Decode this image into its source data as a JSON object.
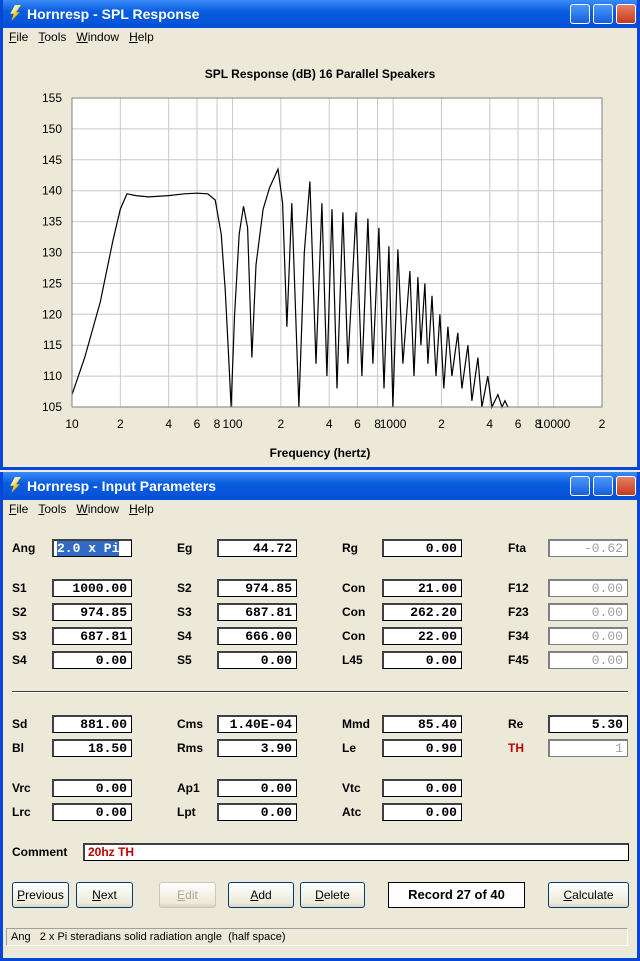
{
  "spl_window": {
    "title": "Hornresp - SPL Response",
    "menu": [
      "File",
      "Tools",
      "Window",
      "Help"
    ]
  },
  "chart_data": {
    "type": "line",
    "title": "SPL Response (dB)   16 Parallel Speakers",
    "xlabel": "Frequency (hertz)",
    "x": [
      10,
      12,
      15,
      18,
      20,
      22,
      25,
      30,
      40,
      50,
      60,
      70,
      78,
      85,
      90,
      95,
      98,
      103,
      110,
      117,
      124,
      132,
      140,
      155,
      170,
      192,
      205,
      218,
      234,
      259,
      280,
      303,
      331,
      360,
      387,
      416,
      447,
      487,
      523,
      587,
      639,
      697,
      748,
      816,
      877,
      942,
      997,
      1071,
      1151,
      1273,
      1349,
      1426,
      1490,
      1578,
      1648,
      1746,
      1849,
      1955,
      2070,
      2193,
      2322,
      2530,
      2680,
      2922,
      3097,
      3375,
      3574,
      3890,
      4121,
      4497,
      4764,
      4966,
      5188
    ],
    "values": [
      107,
      113,
      122,
      132,
      137,
      139.5,
      139.2,
      139,
      139.2,
      139.5,
      139.6,
      139.5,
      138.5,
      133,
      124,
      112,
      105,
      120,
      133,
      137.5,
      134,
      113,
      128,
      137,
      140.5,
      143.5,
      138,
      118,
      138,
      105,
      130,
      141.5,
      112,
      138,
      110,
      137,
      108,
      136.5,
      112,
      136.5,
      110,
      135.5,
      112,
      134,
      108,
      131,
      105,
      130.5,
      112,
      127,
      110,
      126,
      115,
      125,
      112,
      123,
      110,
      120,
      108,
      118,
      110,
      117,
      108,
      115,
      106,
      113,
      105,
      110,
      105,
      107,
      105,
      106,
      105
    ],
    "color": "#000000",
    "x_log": true,
    "grid": true,
    "xlim": [
      10,
      20000
    ],
    "xticks": [
      10,
      {
        "value": 20,
        "label": "2"
      },
      {
        "value": 40,
        "label": "4"
      },
      {
        "value": 60,
        "label": "6"
      },
      {
        "value": 80,
        "label": "8"
      },
      100,
      {
        "value": 200,
        "label": "2"
      },
      {
        "value": 400,
        "label": "4"
      },
      {
        "value": 600,
        "label": "6"
      },
      {
        "value": 800,
        "label": "8"
      },
      1000,
      {
        "value": 2000,
        "label": "2"
      },
      {
        "value": 4000,
        "label": "4"
      },
      {
        "value": 6000,
        "label": "6"
      },
      {
        "value": 8000,
        "label": "8"
      },
      10000,
      {
        "value": 20000,
        "label": "2"
      }
    ],
    "ylim": [
      105,
      155
    ],
    "yticks": [
      105,
      110,
      115,
      120,
      125,
      130,
      135,
      140,
      145,
      150,
      155
    ]
  },
  "input_window": {
    "title": "Hornresp - Input Parameters",
    "menu": [
      "File",
      "Tools",
      "Window",
      "Help"
    ],
    "rows": [
      [
        [
          "Ang",
          "2.0 x Pi"
        ],
        [
          "Eg",
          "44.72"
        ],
        [
          "Rg",
          "0.00"
        ],
        [
          "Fta",
          "-0.62"
        ]
      ],
      [
        [
          "S1",
          "1000.00"
        ],
        [
          "S2",
          "974.85"
        ],
        [
          "Con",
          "21.00"
        ],
        [
          "F12",
          "0.00"
        ]
      ],
      [
        [
          "S2",
          "974.85"
        ],
        [
          "S3",
          "687.81"
        ],
        [
          "Con",
          "262.20"
        ],
        [
          "F23",
          "0.00"
        ]
      ],
      [
        [
          "S3",
          "687.81"
        ],
        [
          "S4",
          "666.00"
        ],
        [
          "Con",
          "22.00"
        ],
        [
          "F34",
          "0.00"
        ]
      ],
      [
        [
          "S4",
          "0.00"
        ],
        [
          "S5",
          "0.00"
        ],
        [
          "L45",
          "0.00"
        ],
        [
          "F45",
          "0.00"
        ]
      ],
      [
        [
          "Sd",
          "881.00"
        ],
        [
          "Cms",
          "1.40E-04"
        ],
        [
          "Mmd",
          "85.40"
        ],
        [
          "Re",
          "5.30"
        ]
      ],
      [
        [
          "Bl",
          "18.50"
        ],
        [
          "Rms",
          "3.90"
        ],
        [
          "Le",
          "0.90"
        ],
        [
          "TH",
          "1"
        ]
      ],
      [
        [
          "Vrc",
          "0.00"
        ],
        [
          "Ap1",
          "0.00"
        ],
        [
          "Vtc",
          "0.00"
        ]
      ],
      [
        [
          "Lrc",
          "0.00"
        ],
        [
          "Lpt",
          "0.00"
        ],
        [
          "Atc",
          "0.00"
        ]
      ]
    ],
    "comment_label": "Comment",
    "comment": "20hz TH",
    "buttons": [
      "Previous",
      "Next",
      "Edit",
      "Add",
      "Delete"
    ],
    "record": "Record 27 of 40",
    "calculate": "Calculate",
    "status": "Ang   2 x Pi steradians solid radiation angle  (half space)"
  }
}
